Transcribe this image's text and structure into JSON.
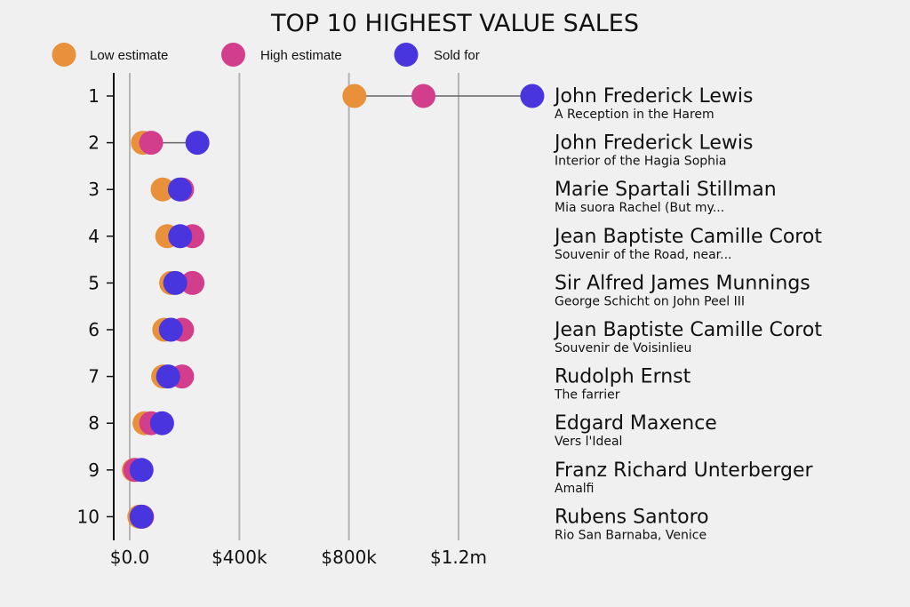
{
  "chart_data": {
    "type": "scatter",
    "subtype": "dot-plot",
    "title": "TOP 10 HIGHEST VALUE SALES",
    "xlabel": "",
    "ylabel": "",
    "xlim": [
      -60000,
      1450000
    ],
    "x_ticks": [
      0,
      400000,
      800000,
      1200000
    ],
    "x_tick_labels": [
      "$0.0",
      "$400k",
      "$800k",
      "$1.2m"
    ],
    "grid": "vertical",
    "legend_position": "top-left",
    "categories": [
      "1",
      "2",
      "3",
      "4",
      "5",
      "6",
      "7",
      "8",
      "9",
      "10"
    ],
    "series": [
      {
        "name": "Low estimate",
        "color": "#E8913A",
        "values": [
          820000,
          48000,
          120000,
          137000,
          151000,
          126000,
          122000,
          54000,
          15000,
          35000
        ]
      },
      {
        "name": "High estimate",
        "color": "#D33E8C",
        "values": [
          1072000,
          78000,
          191000,
          229000,
          229000,
          191000,
          191000,
          78000,
          20000,
          45000
        ]
      },
      {
        "name": "Sold for",
        "color": "#4935DE",
        "values": [
          1469000,
          247000,
          183000,
          184000,
          166000,
          150000,
          140000,
          118000,
          43000,
          43000
        ]
      }
    ],
    "annotations": [
      {
        "rank": "1",
        "artist": "John Frederick Lewis",
        "work": "A Reception in the Harem"
      },
      {
        "rank": "2",
        "artist": "John Frederick Lewis",
        "work": "Interior of the Hagia Sophia"
      },
      {
        "rank": "3",
        "artist": "Marie Spartali Stillman",
        "work": "Mia suora Rachel (But my..."
      },
      {
        "rank": "4",
        "artist": "Jean Baptiste Camille Corot",
        "work": "Souvenir of the Road, near..."
      },
      {
        "rank": "5",
        "artist": "Sir Alfred James Munnings",
        "work": "George Schicht on John Peel III"
      },
      {
        "rank": "6",
        "artist": "Jean Baptiste Camille Corot",
        "work": "Souvenir de Voisinlieu"
      },
      {
        "rank": "7",
        "artist": "Rudolph Ernst",
        "work": "The farrier"
      },
      {
        "rank": "8",
        "artist": "Edgard Maxence",
        "work": "Vers l'Ideal"
      },
      {
        "rank": "9",
        "artist": "Franz Richard Unterberger",
        "work": "Amalfi"
      },
      {
        "rank": "10",
        "artist": "Rubens Santoro",
        "work": "Rio San Barnaba, Venice"
      }
    ]
  }
}
